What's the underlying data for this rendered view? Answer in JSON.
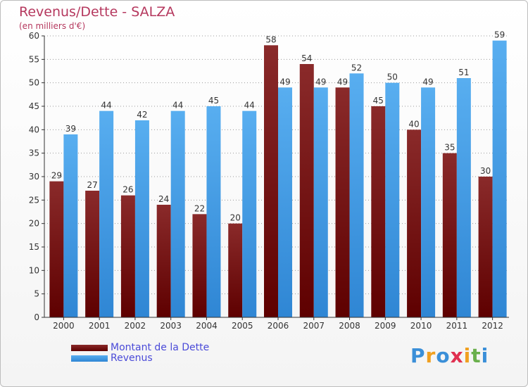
{
  "header": {
    "title": "Revenus/Dette - SALZA",
    "subtitle": "(en milliers d'€)"
  },
  "chart_data": {
    "type": "bar",
    "title": "Revenus/Dette - SALZA",
    "subtitle": "(en milliers d'€)",
    "categories": [
      "2000",
      "2001",
      "2002",
      "2003",
      "2004",
      "2005",
      "2006",
      "2007",
      "2008",
      "2009",
      "2010",
      "2011",
      "2012"
    ],
    "series": [
      {
        "name": "Montant de la Dette",
        "color": "#7a1a1a",
        "values": [
          29,
          27,
          26,
          24,
          22,
          20,
          58,
          54,
          49,
          45,
          40,
          35,
          30
        ]
      },
      {
        "name": "Revenus",
        "color": "#3d8fdc",
        "values": [
          39,
          44,
          42,
          44,
          45,
          44,
          49,
          49,
          52,
          50,
          49,
          51,
          59
        ]
      }
    ],
    "ylim": [
      0,
      60
    ],
    "yticks": [
      0,
      5,
      10,
      15,
      20,
      25,
      30,
      35,
      40,
      45,
      50,
      55,
      60
    ],
    "grid": true,
    "legend": "bottom-left",
    "data_labels": true
  },
  "logo": {
    "letters": [
      "P",
      "r",
      "o",
      "x",
      "i",
      "t",
      "i"
    ],
    "colors": [
      "#3a8fd8",
      "#f0a020",
      "#3a8fd8",
      "#e03050",
      "#f0a020",
      "#6ab04c",
      "#3a8fd8"
    ]
  }
}
